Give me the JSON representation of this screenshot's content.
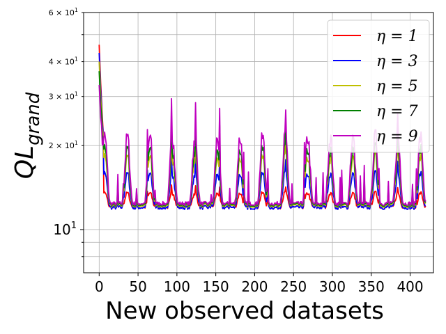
{
  "chart_data": {
    "type": "line",
    "xlabel": "New observed datasets",
    "ylabel": "QL",
    "ylabel_subscript": "grand",
    "y_scale": "log",
    "xlim": [
      -20,
      430
    ],
    "ylim": [
      7.0,
      60
    ],
    "x_ticks": [
      0,
      50,
      100,
      150,
      200,
      250,
      300,
      350,
      400
    ],
    "y_major_ticks": [
      {
        "value": 10,
        "label": "10",
        "sup": "1"
      }
    ],
    "y_minor_ticks": [
      {
        "value": 20,
        "label": "2 × 10",
        "sup": "1"
      },
      {
        "value": 30,
        "label": "3 × 10",
        "sup": "1"
      },
      {
        "value": 40,
        "label": "4 × 10",
        "sup": "1"
      },
      {
        "value": 60,
        "label": "6 × 10",
        "sup": "1"
      }
    ],
    "y_minor_unlabeled": [
      8,
      9,
      50
    ],
    "grid": true,
    "legend_position": "top-right",
    "series": [
      {
        "name": "η = 1",
        "color": "#ff0000",
        "start": 46,
        "base": 12.0,
        "amp": 0.12,
        "spike": 0.15
      },
      {
        "name": "η = 3",
        "color": "#0000ff",
        "start": 43,
        "base": 12.0,
        "amp": 0.28,
        "spike": 0.55
      },
      {
        "name": "η = 5",
        "color": "#bfbf00",
        "start": 40,
        "base": 12.2,
        "amp": 0.4,
        "spike": 0.85
      },
      {
        "name": "η = 7",
        "color": "#008000",
        "start": 37,
        "base": 12.3,
        "amp": 0.46,
        "spike": 0.95
      },
      {
        "name": "η = 9",
        "color": "#bf00bf",
        "start": 33,
        "base": 12.4,
        "amp": 0.55,
        "spike": 1.0
      }
    ]
  }
}
